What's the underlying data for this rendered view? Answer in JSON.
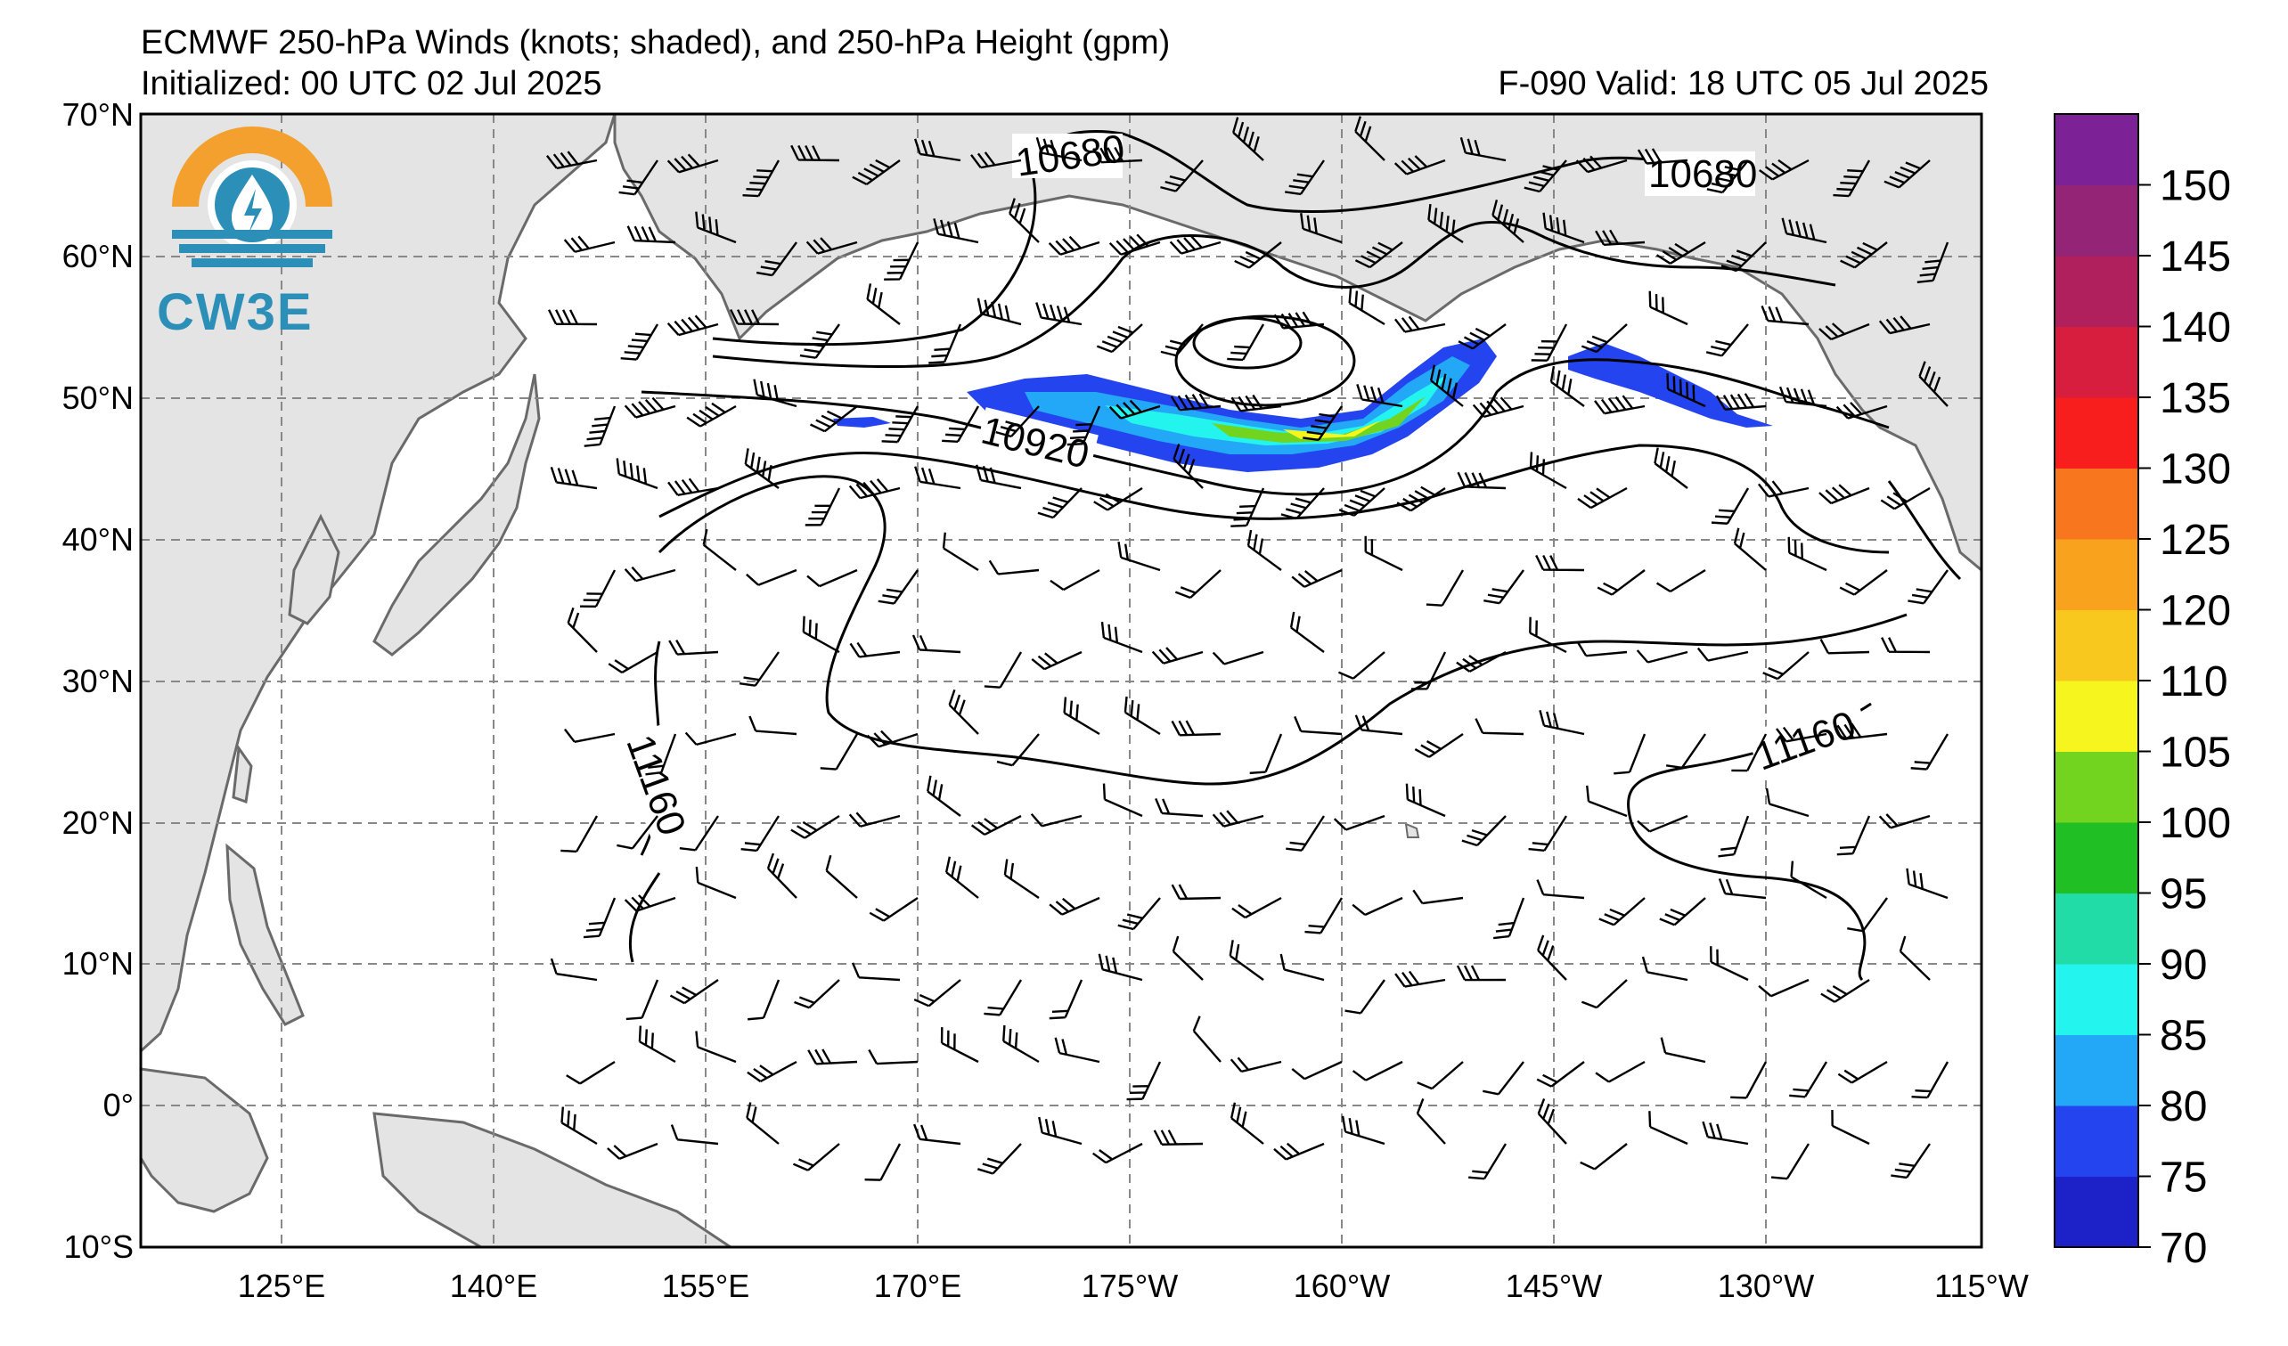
{
  "header": {
    "title": "ECMWF 250-hPa Winds (knots; shaded), and 250-hPa Height (gpm)",
    "initialized": "Initialized: 00 UTC 02 Jul 2025",
    "valid": "F-090  Valid: 18 UTC 05 Jul 2025"
  },
  "logo": {
    "text": "CW3E",
    "icon": "water-drop-sun-icon"
  },
  "axes": {
    "lat_labels": [
      "70°N",
      "60°N",
      "50°N",
      "40°N",
      "30°N",
      "20°N",
      "10°N",
      "0°",
      "10°S"
    ],
    "lon_labels": [
      "125°E",
      "140°E",
      "155°E",
      "170°E",
      "175°W",
      "160°W",
      "145°W",
      "130°W",
      "115°W"
    ]
  },
  "colorbar": {
    "levels": [
      70,
      75,
      80,
      85,
      90,
      95,
      100,
      105,
      110,
      120,
      125,
      130,
      135,
      140,
      145,
      150
    ],
    "labels": [
      "70",
      "75",
      "80",
      "85",
      "90",
      "95",
      "100",
      "105",
      "110",
      "120",
      "125",
      "130",
      "135",
      "140",
      "145",
      "150"
    ],
    "colors": [
      "#1c22c8",
      "#2444f0",
      "#22a8f6",
      "#24f4ee",
      "#22dca8",
      "#20c024",
      "#72d41e",
      "#f6f61e",
      "#f8c81e",
      "#f8a21e",
      "#f8761e",
      "#f81e1e",
      "#d81e3e",
      "#b0205c",
      "#942476",
      "#7c2296"
    ]
  },
  "contours": {
    "labels": [
      "10680",
      "10680",
      "10920",
      "11160",
      "11160"
    ]
  },
  "colors": {
    "land": "#e4e4e4",
    "coast": "#6a6a6a",
    "grid": "#888888"
  }
}
